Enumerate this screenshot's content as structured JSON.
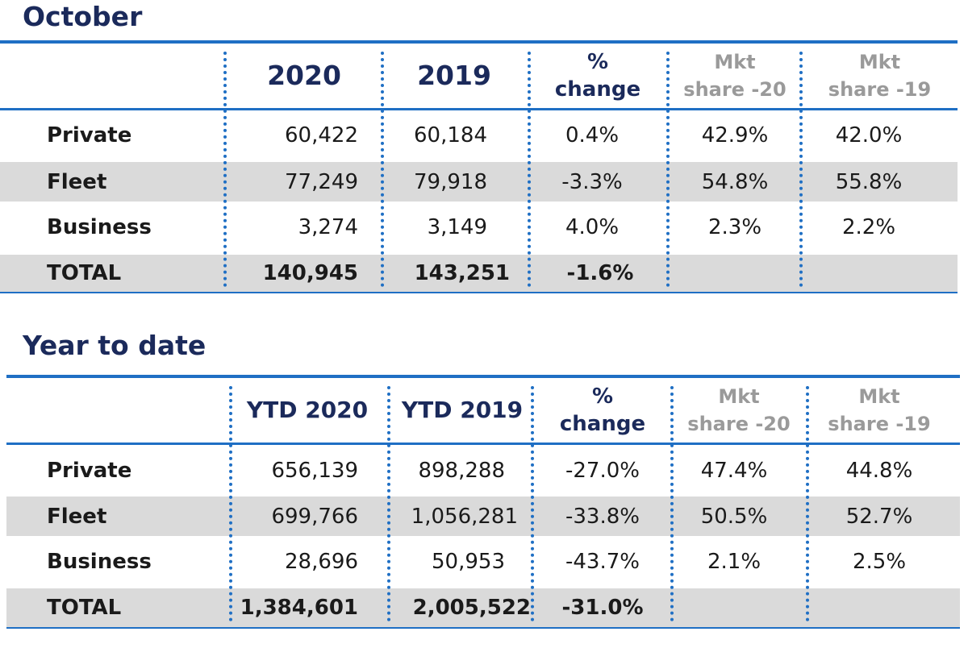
{
  "tables": [
    {
      "title": "October",
      "headers": [
        "2020",
        "2019",
        "% change",
        "Mkt share -20",
        "Mkt share -19"
      ],
      "header_lines": {
        "pct": [
          "%",
          "change"
        ],
        "mkt20": [
          "Mkt",
          "share -20"
        ],
        "mkt19": [
          "Mkt",
          "share -19"
        ]
      },
      "rows": [
        {
          "label": "Private",
          "y2020": "60,422",
          "y2019": "60,184",
          "change": "0.4%",
          "share20": "42.9%",
          "share19": "42.0%"
        },
        {
          "label": "Fleet",
          "y2020": "77,249",
          "y2019": "79,918",
          "change": "-3.3%",
          "share20": "54.8%",
          "share19": "55.8%"
        },
        {
          "label": "Business",
          "y2020": "3,274",
          "y2019": "3,149",
          "change": "4.0%",
          "share20": "2.3%",
          "share19": "2.2%"
        },
        {
          "label": "TOTAL",
          "y2020": "140,945",
          "y2019": "143,251",
          "change": "-1.6%",
          "share20": "",
          "share19": ""
        }
      ]
    },
    {
      "title": "Year to date",
      "headers": [
        "YTD 2020",
        "YTD 2019",
        "% change",
        "Mkt share -20",
        "Mkt share -19"
      ],
      "header_lines": {
        "pct": [
          "%",
          "change"
        ],
        "mkt20": [
          "Mkt",
          "share -20"
        ],
        "mkt19": [
          "Mkt",
          "share -19"
        ]
      },
      "rows": [
        {
          "label": "Private",
          "y2020": "656,139",
          "y2019": "898,288",
          "change": "-27.0%",
          "share20": "47.4%",
          "share19": "44.8%"
        },
        {
          "label": "Fleet",
          "y2020": "699,766",
          "y2019": "1,056,281",
          "change": "-33.8%",
          "share20": "50.5%",
          "share19": "52.7%"
        },
        {
          "label": "Business",
          "y2020": "28,696",
          "y2019": "50,953",
          "change": "-43.7%",
          "share20": "2.1%",
          "share19": "2.5%"
        },
        {
          "label": "TOTAL",
          "y2020": "1,384,601",
          "y2019": "2,005,522",
          "change": "-31.0%",
          "share20": "",
          "share19": ""
        }
      ]
    }
  ],
  "colors": {
    "title": "#1b2a5b",
    "rule": "#1f6fc4",
    "shade": "#dadada",
    "muted_header": "#9a9a9a"
  }
}
